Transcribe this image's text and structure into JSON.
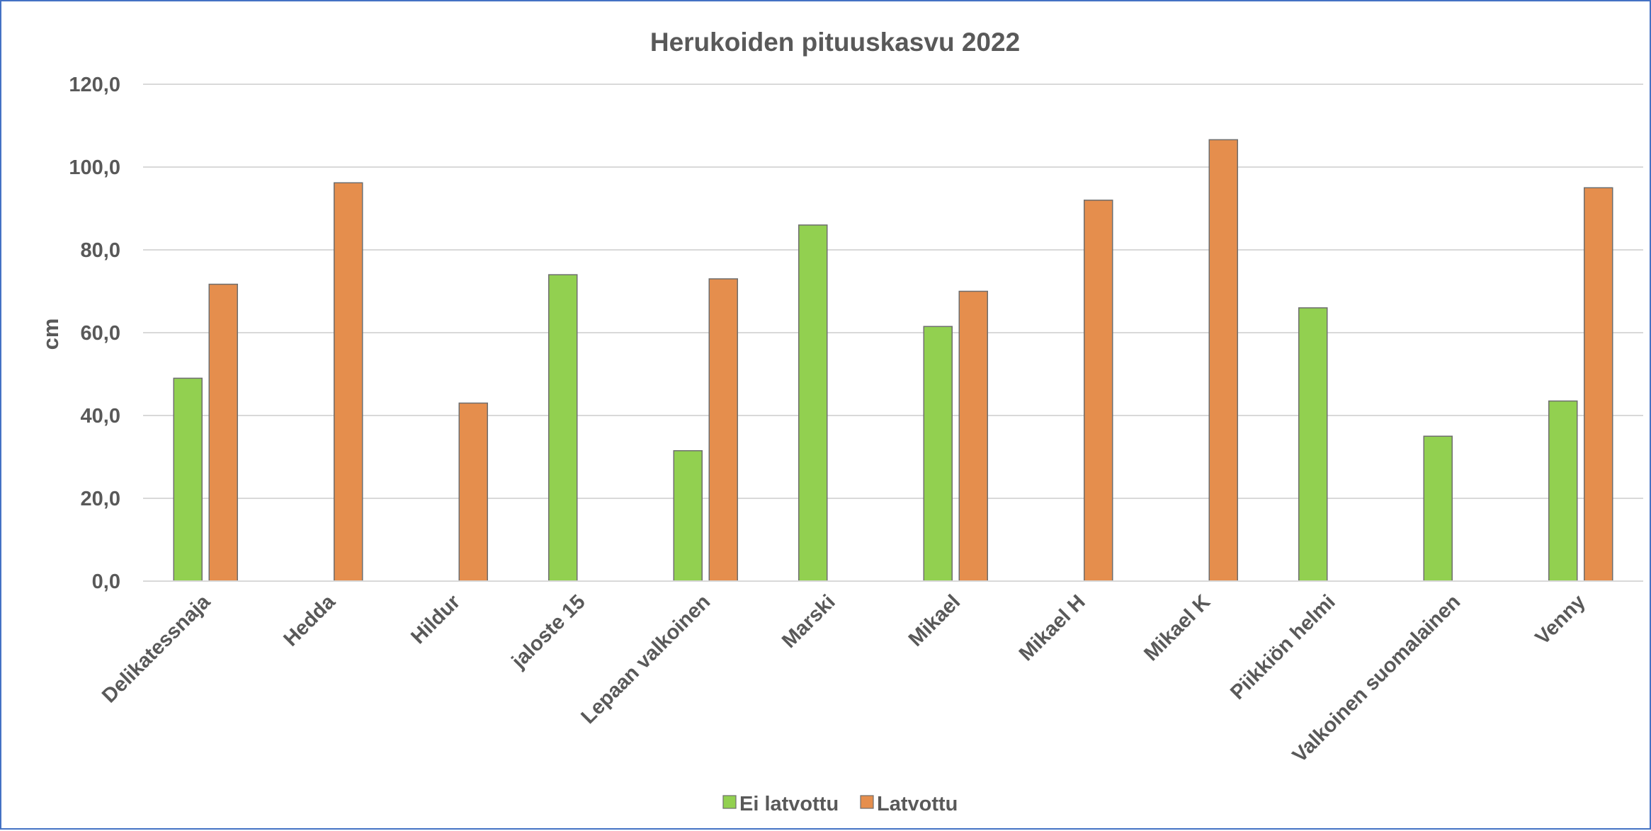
{
  "chart_data": {
    "type": "bar",
    "title": "Herukoiden pituuskasvu 2022",
    "xlabel": "",
    "ylabel": "cm",
    "ylim": [
      0,
      120
    ],
    "yticks": [
      "0,0",
      "20,0",
      "40,0",
      "60,0",
      "80,0",
      "100,0",
      "120,0"
    ],
    "ytick_values": [
      0,
      20,
      40,
      60,
      80,
      100,
      120
    ],
    "grid": true,
    "legend_position": "bottom",
    "categories": [
      "Delikatessnaja",
      "Hedda",
      "Hildur",
      "jaloste 15",
      "Lepaan valkoinen",
      "Marski",
      "Mikael",
      "Mikael H",
      "Mikael K",
      "Piikkiön helmi",
      "Valkoinen suomalainen",
      "Venny"
    ],
    "series": [
      {
        "name": "Ei latvottu",
        "color": "#92D050",
        "values": [
          49.0,
          null,
          null,
          74.0,
          31.5,
          86.0,
          61.5,
          null,
          null,
          66.0,
          35.0,
          43.5
        ]
      },
      {
        "name": "Latvottu",
        "color": "#E58E4D",
        "values": [
          71.7,
          96.2,
          43.0,
          null,
          73.0,
          null,
          70.0,
          92.0,
          106.6,
          null,
          null,
          95.0
        ]
      }
    ]
  }
}
